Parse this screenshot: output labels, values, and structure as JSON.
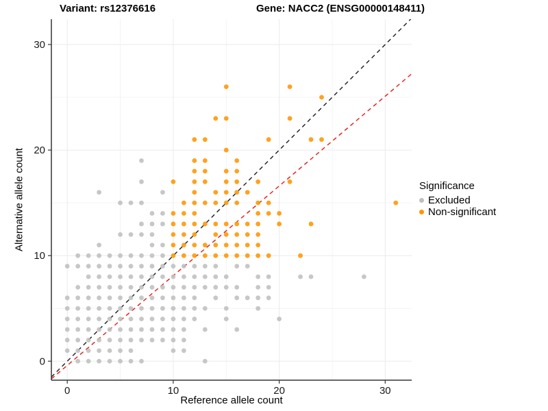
{
  "header": {
    "variant_title": "Variant: rs12376616",
    "gene_title": "Gene: NACC2 (ENSG00000148411)"
  },
  "legend": {
    "title": "Significance",
    "items": [
      {
        "label": "Excluded",
        "color": "#bfbfbf"
      },
      {
        "label": "Non-significant",
        "color": "#ff9500"
      }
    ]
  },
  "chart_data": {
    "type": "scatter",
    "xlabel": "Reference allele count",
    "ylabel": "Alternative allele count",
    "x_ticks": [
      0,
      10,
      20,
      30
    ],
    "y_ticks": [
      0,
      10,
      20,
      30
    ],
    "minor_ticks": [
      5,
      15,
      25
    ],
    "xlim": [
      -1.5,
      32.5
    ],
    "ylim": [
      -1.8,
      32.4
    ],
    "grid": "on",
    "legend_position": "right",
    "series": [
      {
        "name": "Excluded",
        "color": "#bfbfbf",
        "points": [
          [
            1,
            0
          ],
          [
            2,
            0
          ],
          [
            3,
            0
          ],
          [
            4,
            0
          ],
          [
            5,
            0
          ],
          [
            6,
            0
          ],
          [
            7,
            0
          ],
          [
            13,
            0
          ],
          [
            0,
            1
          ],
          [
            1,
            1
          ],
          [
            2,
            1
          ],
          [
            3,
            1
          ],
          [
            4,
            1
          ],
          [
            5,
            1
          ],
          [
            6,
            1
          ],
          [
            10,
            1
          ],
          [
            11,
            1
          ],
          [
            0,
            2
          ],
          [
            1,
            2
          ],
          [
            2,
            2
          ],
          [
            3,
            2
          ],
          [
            4,
            2
          ],
          [
            5,
            2
          ],
          [
            6,
            2
          ],
          [
            7,
            2
          ],
          [
            8,
            2
          ],
          [
            9,
            2
          ],
          [
            10,
            2
          ],
          [
            11,
            2
          ],
          [
            0,
            3
          ],
          [
            1,
            3
          ],
          [
            2,
            3
          ],
          [
            3,
            3
          ],
          [
            4,
            3
          ],
          [
            5,
            3
          ],
          [
            6,
            3
          ],
          [
            7,
            3
          ],
          [
            8,
            3
          ],
          [
            9,
            3
          ],
          [
            10,
            3
          ],
          [
            11,
            3
          ],
          [
            13,
            3
          ],
          [
            16,
            3
          ],
          [
            0,
            4
          ],
          [
            1,
            4
          ],
          [
            2,
            4
          ],
          [
            3,
            4
          ],
          [
            4,
            4
          ],
          [
            5,
            4
          ],
          [
            6,
            4
          ],
          [
            7,
            4
          ],
          [
            8,
            4
          ],
          [
            9,
            4
          ],
          [
            10,
            4
          ],
          [
            11,
            4
          ],
          [
            12,
            4
          ],
          [
            15,
            4
          ],
          [
            20,
            4
          ],
          [
            0,
            5
          ],
          [
            1,
            5
          ],
          [
            2,
            5
          ],
          [
            3,
            5
          ],
          [
            4,
            5
          ],
          [
            5,
            5
          ],
          [
            6,
            5
          ],
          [
            7,
            5
          ],
          [
            8,
            5
          ],
          [
            9,
            5
          ],
          [
            10,
            5
          ],
          [
            11,
            5
          ],
          [
            12,
            5
          ],
          [
            13,
            5
          ],
          [
            15,
            5
          ],
          [
            18,
            5
          ],
          [
            0,
            6
          ],
          [
            1,
            6
          ],
          [
            2,
            6
          ],
          [
            3,
            6
          ],
          [
            4,
            6
          ],
          [
            5,
            6
          ],
          [
            6,
            6
          ],
          [
            7,
            6
          ],
          [
            8,
            6
          ],
          [
            9,
            6
          ],
          [
            10,
            6
          ],
          [
            11,
            6
          ],
          [
            12,
            6
          ],
          [
            14,
            6
          ],
          [
            16,
            6
          ],
          [
            17,
            6
          ],
          [
            18,
            6
          ],
          [
            19,
            6
          ],
          [
            1,
            7
          ],
          [
            2,
            7
          ],
          [
            3,
            7
          ],
          [
            4,
            7
          ],
          [
            5,
            7
          ],
          [
            6,
            7
          ],
          [
            7,
            7
          ],
          [
            8,
            7
          ],
          [
            9,
            7
          ],
          [
            10,
            7
          ],
          [
            11,
            7
          ],
          [
            12,
            7
          ],
          [
            13,
            7
          ],
          [
            14,
            7
          ],
          [
            15,
            7
          ],
          [
            16,
            7
          ],
          [
            18,
            7
          ],
          [
            19,
            7
          ],
          [
            2,
            8
          ],
          [
            3,
            8
          ],
          [
            4,
            8
          ],
          [
            5,
            8
          ],
          [
            6,
            8
          ],
          [
            7,
            8
          ],
          [
            8,
            8
          ],
          [
            9,
            8
          ],
          [
            10,
            8
          ],
          [
            11,
            8
          ],
          [
            12,
            8
          ],
          [
            13,
            8
          ],
          [
            14,
            8
          ],
          [
            15,
            8
          ],
          [
            18,
            8
          ],
          [
            19,
            8
          ],
          [
            22,
            8
          ],
          [
            23,
            8
          ],
          [
            28,
            8
          ],
          [
            0,
            9
          ],
          [
            1,
            9
          ],
          [
            2,
            9
          ],
          [
            3,
            9
          ],
          [
            4,
            9
          ],
          [
            5,
            9
          ],
          [
            6,
            9
          ],
          [
            7,
            9
          ],
          [
            8,
            9
          ],
          [
            9,
            9
          ],
          [
            10,
            9
          ],
          [
            11,
            9
          ],
          [
            12,
            9
          ],
          [
            13,
            9
          ],
          [
            14,
            9
          ],
          [
            16,
            9
          ],
          [
            17,
            9
          ],
          [
            1,
            10
          ],
          [
            2,
            10
          ],
          [
            3,
            10
          ],
          [
            4,
            10
          ],
          [
            5,
            10
          ],
          [
            6,
            10
          ],
          [
            7,
            10
          ],
          [
            8,
            10
          ],
          [
            9,
            10
          ],
          [
            3,
            11
          ],
          [
            8,
            11
          ],
          [
            9,
            11
          ],
          [
            5,
            12
          ],
          [
            6,
            12
          ],
          [
            7,
            12
          ],
          [
            8,
            12
          ],
          [
            7,
            13
          ],
          [
            8,
            13
          ],
          [
            9,
            13
          ],
          [
            8,
            14
          ],
          [
            9,
            14
          ],
          [
            5,
            15
          ],
          [
            6,
            15
          ],
          [
            7,
            15
          ],
          [
            3,
            16
          ],
          [
            9,
            16
          ],
          [
            7,
            17
          ],
          [
            7,
            19
          ]
        ]
      },
      {
        "name": "Non-significant",
        "color": "#ff9500",
        "points": [
          [
            10,
            10
          ],
          [
            11,
            10
          ],
          [
            12,
            10
          ],
          [
            13,
            10
          ],
          [
            14,
            10
          ],
          [
            15,
            10
          ],
          [
            16,
            10
          ],
          [
            17,
            10
          ],
          [
            18,
            10
          ],
          [
            19,
            10
          ],
          [
            22,
            10
          ],
          [
            10,
            11
          ],
          [
            11,
            11
          ],
          [
            12,
            11
          ],
          [
            13,
            11
          ],
          [
            14,
            11
          ],
          [
            15,
            11
          ],
          [
            16,
            11
          ],
          [
            17,
            11
          ],
          [
            18,
            11
          ],
          [
            10,
            12
          ],
          [
            11,
            12
          ],
          [
            12,
            12
          ],
          [
            14,
            12
          ],
          [
            15,
            12
          ],
          [
            16,
            12
          ],
          [
            17,
            12
          ],
          [
            18,
            12
          ],
          [
            10,
            13
          ],
          [
            11,
            13
          ],
          [
            12,
            13
          ],
          [
            13,
            13
          ],
          [
            14,
            13
          ],
          [
            15,
            13
          ],
          [
            16,
            13
          ],
          [
            17,
            13
          ],
          [
            18,
            13
          ],
          [
            20,
            13
          ],
          [
            23,
            13
          ],
          [
            10,
            14
          ],
          [
            11,
            14
          ],
          [
            12,
            14
          ],
          [
            18,
            14
          ],
          [
            19,
            14
          ],
          [
            20,
            14
          ],
          [
            11,
            15
          ],
          [
            12,
            15
          ],
          [
            13,
            15
          ],
          [
            14,
            15
          ],
          [
            15,
            15
          ],
          [
            16,
            15
          ],
          [
            18,
            15
          ],
          [
            19,
            15
          ],
          [
            31,
            15
          ],
          [
            12,
            16
          ],
          [
            14,
            16
          ],
          [
            15,
            16
          ],
          [
            16,
            16
          ],
          [
            17,
            16
          ],
          [
            10,
            17
          ],
          [
            12,
            17
          ],
          [
            13,
            17
          ],
          [
            15,
            17
          ],
          [
            16,
            17
          ],
          [
            18,
            17
          ],
          [
            21,
            17
          ],
          [
            12,
            18
          ],
          [
            13,
            18
          ],
          [
            15,
            18
          ],
          [
            16,
            18
          ],
          [
            12,
            19
          ],
          [
            13,
            19
          ],
          [
            16,
            19
          ],
          [
            15,
            20
          ],
          [
            12,
            21
          ],
          [
            13,
            21
          ],
          [
            19,
            21
          ],
          [
            23,
            21
          ],
          [
            24,
            21
          ],
          [
            14,
            23
          ],
          [
            15,
            23
          ],
          [
            21,
            23
          ],
          [
            24,
            25
          ],
          [
            15,
            26
          ],
          [
            21,
            26
          ]
        ]
      }
    ],
    "lines": [
      {
        "name": "identity-line",
        "slope": 1.0,
        "intercept": 0.0,
        "color": "#1a1a1a",
        "dash": "6,5"
      },
      {
        "name": "fit-line",
        "slope": 0.85,
        "intercept": -0.4,
        "color": "#e8140f",
        "dash": "6,5"
      }
    ]
  }
}
